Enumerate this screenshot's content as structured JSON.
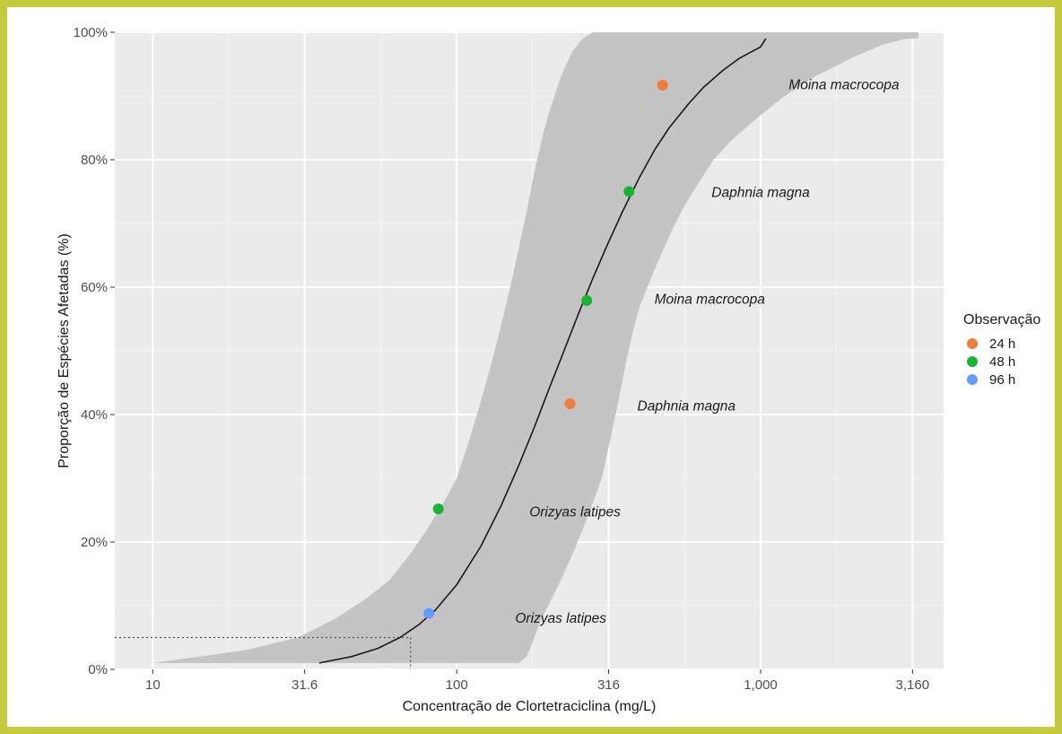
{
  "chart_data": {
    "type": "scatter",
    "xlabel": "Concentração de Clortetraciclina (mg/L)",
    "ylabel": "Proporção de Espécies Afetadas (%)",
    "x_scale": "log10",
    "xlim": [
      7.5,
      4000
    ],
    "ylim": [
      0,
      100
    ],
    "x_ticks": [
      10,
      31.6,
      100,
      316,
      1000,
      3160
    ],
    "x_tick_labels": [
      "10",
      "31.6",
      "100",
      "316",
      "1,000",
      "3,160"
    ],
    "y_ticks": [
      0,
      20,
      40,
      60,
      80,
      100
    ],
    "y_tick_labels": [
      "0%",
      "20%",
      "40%",
      "60%",
      "80%",
      "100%"
    ],
    "grid": true,
    "legend": {
      "title": "Observação",
      "position": "right",
      "entries": [
        {
          "label": "24 h",
          "color": "#f07d3a"
        },
        {
          "label": "48 h",
          "color": "#18b432"
        },
        {
          "label": "96 h",
          "color": "#619cff"
        }
      ]
    },
    "points": [
      {
        "x": 81,
        "y": 8.8,
        "group": "96 h"
      },
      {
        "x": 87,
        "y": 25.2,
        "group": "48 h"
      },
      {
        "x": 236,
        "y": 41.7,
        "group": "24 h"
      },
      {
        "x": 268,
        "y": 57.9,
        "group": "48 h"
      },
      {
        "x": 369,
        "y": 75.0,
        "group": "48 h"
      },
      {
        "x": 476,
        "y": 91.7,
        "group": "24 h"
      }
    ],
    "species_labels": [
      {
        "text": "Orizyas latipes",
        "x": 220,
        "y": 7.9
      },
      {
        "text": "Orizyas latipes",
        "x": 245,
        "y": 24.6
      },
      {
        "text": "Daphnia magna",
        "x": 570,
        "y": 41.2
      },
      {
        "text": "Moina macrocopa",
        "x": 680,
        "y": 58.0
      },
      {
        "text": "Daphnia magna",
        "x": 1000,
        "y": 74.7
      },
      {
        "text": "Moina macrocopa",
        "x": 1880,
        "y": 91.6
      }
    ],
    "fitted_curve": {
      "x": [
        35.3,
        45,
        55,
        65,
        75,
        85,
        100,
        120,
        140,
        160,
        180,
        200,
        220,
        250,
        280,
        310,
        350,
        400,
        450,
        500,
        580,
        650,
        750,
        850,
        1000,
        1040
      ],
      "y": [
        1.0,
        2.0,
        3.3,
        5.0,
        7.0,
        9.3,
        13.3,
        19.3,
        25.7,
        32.0,
        38.0,
        43.7,
        48.7,
        55.5,
        61.3,
        66.2,
        71.7,
        77.3,
        81.7,
        85.0,
        88.8,
        91.4,
        94.0,
        95.9,
        97.7,
        99.0
      ]
    },
    "confidence_band": {
      "x": [
        10,
        20,
        30,
        40,
        50,
        60,
        70,
        80,
        90,
        100,
        110,
        120,
        130,
        140,
        150,
        160,
        170,
        180,
        190,
        200,
        220,
        240,
        260,
        280,
        300,
        320,
        340,
        360,
        380,
        400,
        450,
        500,
        550,
        600,
        700,
        800,
        1000,
        1200,
        1500,
        2000,
        2500,
        3000,
        3300
      ],
      "lower": [
        1,
        1,
        1,
        1,
        1,
        1,
        1,
        1,
        1,
        1,
        1,
        1,
        1,
        1,
        1,
        1,
        2,
        5,
        8,
        10,
        14,
        18,
        22,
        26,
        30,
        36,
        42,
        48,
        53,
        57,
        63,
        68,
        72,
        75,
        80,
        83,
        87,
        90,
        93,
        96,
        98,
        99,
        99
      ],
      "upper": [
        1,
        3,
        5,
        8,
        11,
        14,
        18,
        22,
        26,
        30,
        36,
        42,
        48,
        54,
        60,
        66,
        72,
        78,
        83,
        87,
        93,
        97,
        99,
        100,
        100,
        100,
        100,
        100,
        100,
        100,
        100,
        100,
        100,
        100,
        100,
        100,
        100,
        100,
        100,
        100,
        100,
        100,
        100
      ]
    },
    "reference_point": {
      "x": 70.5,
      "y": 5
    }
  }
}
